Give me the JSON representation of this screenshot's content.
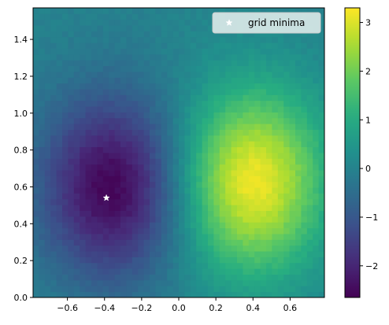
{
  "chart_data": {
    "type": "heatmap",
    "title": "",
    "xlabel": "",
    "ylabel": "",
    "xlim": [
      -0.785,
      0.785
    ],
    "ylim": [
      0.0,
      1.571
    ],
    "x_ticks": [
      -0.6,
      -0.4,
      -0.2,
      0.0,
      0.2,
      0.4,
      0.6
    ],
    "x_tick_labels": [
      "−0.6",
      "−0.4",
      "−0.2",
      "0.0",
      "0.2",
      "0.4",
      "0.6"
    ],
    "y_ticks": [
      0.0,
      0.2,
      0.4,
      0.6,
      0.8,
      1.0,
      1.2,
      1.4
    ],
    "y_tick_labels": [
      "0.0",
      "0.2",
      "0.4",
      "0.6",
      "0.8",
      "1.0",
      "1.2",
      "1.4"
    ],
    "grid_size": [
      50,
      50
    ],
    "field": {
      "description_free": true,
      "background_value": 0.0,
      "blobs": [
        {
          "x0": -0.36,
          "y0": 0.6,
          "sx": 0.27,
          "sy": 0.35,
          "amplitude": -2.6
        },
        {
          "x0": 0.4,
          "y0": 0.63,
          "sx": 0.27,
          "sy": 0.35,
          "amplitude": 3.2
        }
      ]
    },
    "colormap": "viridis",
    "color_range": [
      -2.65,
      3.3
    ],
    "colorbar_ticks": [
      -2,
      -1,
      0,
      1,
      2,
      3
    ],
    "colorbar_tick_labels": [
      "−2",
      "−1",
      "0",
      "1",
      "2",
      "3"
    ],
    "markers": [
      {
        "name": "grid minima",
        "symbol": "star",
        "color": "#ffffff",
        "x": -0.39,
        "y": 0.54
      }
    ],
    "legend": {
      "placement": "top-right",
      "entries": [
        "grid minima"
      ]
    },
    "grid": false
  }
}
